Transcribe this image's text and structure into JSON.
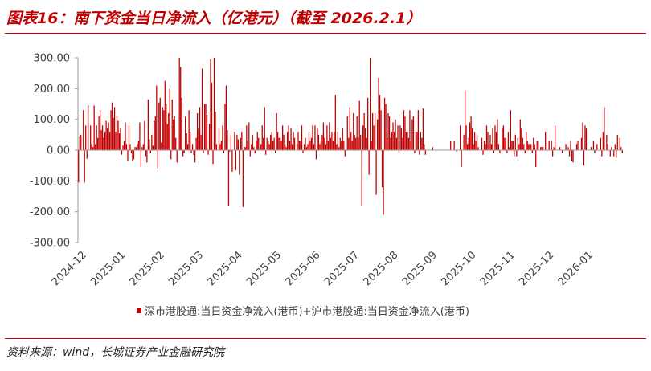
{
  "header": {
    "title": "图表16：南下资金当日净流入（亿港元）（截至 2026.2.1）"
  },
  "footer": {
    "source": "资料来源：wind，长城证券产业金融研究院"
  },
  "colors": {
    "bar": "#c00000",
    "axis": "#999999",
    "accent": "#c00000"
  },
  "chart_data": {
    "type": "bar",
    "title": "图表16：南下资金当日净流入（亿港元）（截至 2026.2.1）",
    "xlabel": "",
    "ylabel": "",
    "ylim": [
      -300,
      300
    ],
    "yticks": [
      "300.00",
      "200.00",
      "100.00",
      "0.00",
      "-100.00",
      "-200.00",
      "-300.00"
    ],
    "yticks_values": [
      300,
      200,
      100,
      0,
      -100,
      -200,
      -300
    ],
    "xticks": [
      "2024-12",
      "2025-01",
      "2025-02",
      "2025-03",
      "2025-04",
      "2025-05",
      "2025-06",
      "2025-07",
      "2025-08",
      "2025-09",
      "2025-10",
      "2025-11",
      "2025-12",
      "2026-01"
    ],
    "grid": false,
    "legend_position": "bottom",
    "series": [
      {
        "name": "深市港股通:当日资金净流入(港币)+沪市港股通:当日资金净流入(港币)",
        "period_start": "2024-12",
        "period_end": "2026-01",
        "values": [
          -105,
          45,
          50,
          0,
          130,
          -105,
          80,
          -28,
          145,
          0,
          80,
          20,
          10,
          145,
          20,
          80,
          40,
          110,
          130,
          65,
          80,
          40,
          60,
          95,
          70,
          90,
          60,
          130,
          155,
          105,
          140,
          60,
          110,
          95,
          55,
          70,
          -15,
          15,
          30,
          90,
          20,
          -35,
          80,
          20,
          -10,
          -35,
          -30,
          10,
          10,
          20,
          30,
          90,
          -55,
          10,
          20,
          95,
          -20,
          -40,
          165,
          35,
          -10,
          50,
          15,
          95,
          110,
          210,
          -60,
          155,
          170,
          25,
          140,
          130,
          225,
          150,
          85,
          120,
          200,
          -30,
          165,
          100,
          110,
          40,
          -40,
          0,
          300,
          270,
          170,
          -20,
          -10,
          110,
          55,
          20,
          130,
          60,
          -10,
          20,
          -15,
          -40,
          40,
          120,
          70,
          140,
          50,
          265,
          -10,
          150,
          150,
          115,
          -15,
          85,
          295,
          220,
          -45,
          300,
          125,
          20,
          0,
          70,
          20,
          30,
          80,
          -10,
          150,
          210,
          65,
          -180,
          -5,
          50,
          -70,
          0,
          60,
          -65,
          50,
          35,
          -80,
          40,
          60,
          -185,
          10,
          10,
          80,
          30,
          90,
          -20,
          20,
          50,
          10,
          -10,
          30,
          60,
          40,
          0,
          20,
          80,
          40,
          140,
          -15,
          40,
          30,
          20,
          50,
          60,
          30,
          40,
          -10,
          120,
          60,
          40,
          40,
          30,
          80,
          50,
          20,
          10,
          60,
          80,
          30,
          70,
          20,
          60,
          40,
          0,
          20,
          60,
          30,
          30,
          80,
          -10,
          20,
          40,
          10,
          20,
          60,
          30,
          40,
          80,
          20,
          80,
          -30,
          70,
          50,
          20,
          30,
          50,
          90,
          40,
          20,
          80,
          30,
          90,
          40,
          60,
          30,
          60,
          180,
          20,
          60,
          10,
          40,
          30,
          70,
          30,
          -20,
          0,
          110,
          40,
          140,
          60,
          30,
          120,
          50,
          40,
          110,
          40,
          160,
          50,
          -180,
          80,
          120,
          70,
          40,
          170,
          -80,
          300,
          30,
          120,
          80,
          120,
          -145,
          100,
          235,
          180,
          130,
          -120,
          -210,
          170,
          150,
          40,
          120,
          110,
          40,
          60,
          90,
          60,
          100,
          40,
          80,
          -10,
          80,
          70,
          40,
          130,
          110,
          60,
          60,
          40,
          130,
          30,
          100,
          110,
          -10,
          60,
          60,
          130,
          -15,
          60,
          40,
          135,
          20,
          -15,
          0,
          0,
          0,
          0,
          0,
          10,
          0,
          0,
          0,
          0,
          0,
          0,
          0,
          0,
          0,
          0,
          0,
          0,
          0,
          0,
          30,
          0,
          0,
          30,
          0,
          -5,
          0,
          0,
          80,
          -55,
          0,
          50,
          195,
          80,
          20,
          40,
          90,
          110,
          70,
          20,
          60,
          30,
          50,
          10,
          0,
          0,
          40,
          -15,
          30,
          20,
          80,
          60,
          20,
          50,
          20,
          70,
          -10,
          80,
          60,
          100,
          20,
          -10,
          0,
          70,
          80,
          40,
          40,
          -10,
          60,
          10,
          130,
          30,
          30,
          -20,
          50,
          -20,
          40,
          20,
          100,
          70,
          40,
          20,
          -10,
          60,
          30,
          20,
          20,
          20,
          -10,
          40,
          20,
          -55,
          30,
          30,
          0,
          10,
          10,
          10,
          0,
          60,
          0,
          0,
          30,
          0,
          30,
          -20,
          10,
          80,
          0,
          0,
          0,
          10,
          0,
          -10,
          0,
          0,
          20,
          0,
          10,
          -20,
          30,
          -35,
          -40,
          0,
          0,
          20,
          30,
          0,
          0,
          40,
          90,
          -50,
          80,
          70,
          0,
          0,
          0,
          10,
          0,
          30,
          -10,
          0,
          20,
          0,
          0,
          40,
          -20,
          60,
          140,
          0,
          50,
          20,
          0,
          -20,
          10,
          0,
          -20,
          20,
          -25,
          50,
          0,
          40,
          10,
          -10
        ]
      }
    ]
  }
}
